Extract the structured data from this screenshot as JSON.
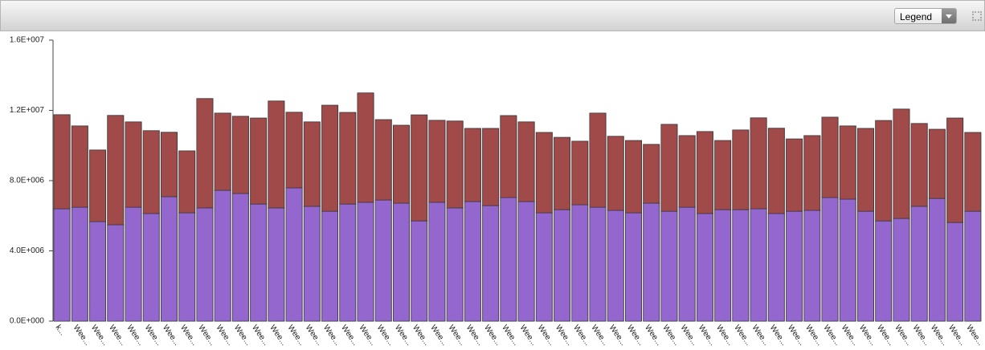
{
  "toolbar": {
    "legend_button": "Legend"
  },
  "chart_data": {
    "type": "stacked_bar",
    "categories": [
      "k...",
      "Wee...",
      "Wee...",
      "Wee...",
      "Wee...",
      "Wee...",
      "Wee...",
      "Wee...",
      "Wee...",
      "Wee...",
      "Wee...",
      "Wee...",
      "Wee...",
      "Wee...",
      "Wee...",
      "Wee...",
      "Wee...",
      "Wee...",
      "Wee...",
      "Wee...",
      "Wee...",
      "Wee...",
      "Wee...",
      "Wee...",
      "Wee...",
      "Wee...",
      "Wee...",
      "Wee...",
      "Wee...",
      "Wee...",
      "Wee...",
      "Wee...",
      "Wee...",
      "Wee...",
      "Wee...",
      "Wee...",
      "Wee...",
      "Wee...",
      "Wee...",
      "Wee...",
      "Wee...",
      "Wee...",
      "Wee...",
      "Wee...",
      "Wee...",
      "Wee...",
      "Wee...",
      "Wee...",
      "Wee...",
      "Wee...",
      "Wee...",
      "Wee..."
    ],
    "series": [
      {
        "color": "#9467cf",
        "values": [
          6400000,
          6490000,
          5670000,
          5490000,
          6490000,
          6130000,
          7090000,
          6170000,
          6450000,
          7450000,
          7270000,
          6670000,
          6450000,
          7590000,
          6540000,
          6260000,
          6670000,
          6770000,
          6900000,
          6720000,
          5710000,
          6770000,
          6450000,
          6810000,
          6580000,
          7040000,
          6810000,
          6170000,
          6350000,
          6630000,
          6490000,
          6310000,
          6170000,
          6720000,
          6260000,
          6490000,
          6130000,
          6350000,
          6350000,
          6400000,
          6130000,
          6260000,
          6310000,
          7040000,
          6950000,
          6260000,
          5710000,
          5850000,
          6540000,
          6990000,
          5620000,
          6260000
        ]
      },
      {
        "color": "#a04a4a",
        "values": [
          5350000,
          4620000,
          4070000,
          6220000,
          4850000,
          4710000,
          3660000,
          3520000,
          6220000,
          4390000,
          4390000,
          4890000,
          6080000,
          4300000,
          4800000,
          6030000,
          5210000,
          6220000,
          4570000,
          4430000,
          6030000,
          4660000,
          4940000,
          4160000,
          4390000,
          4660000,
          4530000,
          4570000,
          4110000,
          3610000,
          5350000,
          4210000,
          4110000,
          3340000,
          4940000,
          4070000,
          4660000,
          3930000,
          4530000,
          5170000,
          4850000,
          4110000,
          4250000,
          4570000,
          4160000,
          4710000,
          5710000,
          6220000,
          4710000,
          3930000,
          5940000,
          4480000
        ]
      }
    ],
    "ylim": [
      0,
      16000000
    ],
    "yticks": [
      {
        "value": 0,
        "label": "0.0E+000"
      },
      {
        "value": 4000000,
        "label": "4.0E+006"
      },
      {
        "value": 8000000,
        "label": "8.0E+006"
      },
      {
        "value": 12000000,
        "label": "1.2E+007"
      },
      {
        "value": 16000000,
        "label": "1.6E+007"
      }
    ]
  }
}
